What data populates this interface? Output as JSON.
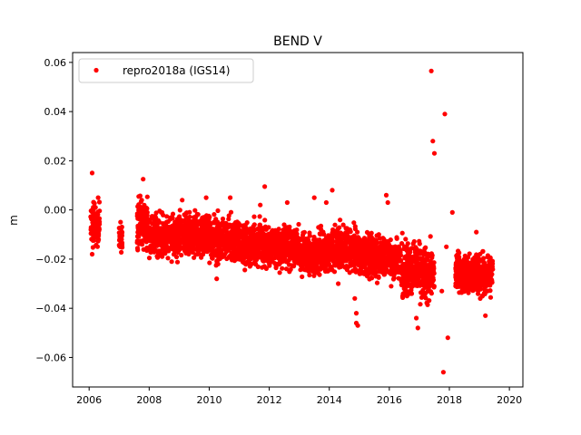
{
  "chart_data": {
    "type": "scatter",
    "title": "BEND V",
    "xlabel": "",
    "ylabel": "m",
    "xlim": [
      2005.45,
      2020.45
    ],
    "ylim": [
      -0.072,
      0.064
    ],
    "xticks": [
      2006,
      2008,
      2010,
      2012,
      2014,
      2016,
      2018,
      2020
    ],
    "yticks": [
      -0.06,
      -0.04,
      -0.02,
      0.0,
      0.02,
      0.04,
      0.06
    ],
    "xtick_labels": [
      "2006",
      "2008",
      "2010",
      "2012",
      "2014",
      "2016",
      "2018",
      "2020"
    ],
    "ytick_labels": [
      "−0.06",
      "−0.04",
      "−0.02",
      "0.00",
      "0.02",
      "0.04",
      "0.06"
    ],
    "grid": false,
    "legend_placement": "top-left",
    "series": [
      {
        "name": "repro2018a (IGS14)",
        "color": "#ff0000",
        "marker": "circle",
        "segments": [
          {
            "start": 2006.05,
            "end": 2006.35,
            "mean": -0.006,
            "spread": 0.004
          },
          {
            "start": 2007.0,
            "end": 2007.1,
            "mean": -0.012,
            "spread": 0.003
          },
          {
            "start": 2007.6,
            "end": 2007.95,
            "mean": -0.005,
            "spread": 0.005
          },
          {
            "start": 2008.0,
            "end": 2009.0,
            "mean": -0.011,
            "spread": 0.004
          },
          {
            "start": 2009.0,
            "end": 2010.0,
            "mean": -0.01,
            "spread": 0.004
          },
          {
            "start": 2010.0,
            "end": 2011.0,
            "mean": -0.012,
            "spread": 0.004
          },
          {
            "start": 2011.0,
            "end": 2012.0,
            "mean": -0.014,
            "spread": 0.004
          },
          {
            "start": 2012.0,
            "end": 2013.0,
            "mean": -0.015,
            "spread": 0.004
          },
          {
            "start": 2013.0,
            "end": 2014.0,
            "mean": -0.018,
            "spread": 0.004
          },
          {
            "start": 2014.0,
            "end": 2015.0,
            "mean": -0.016,
            "spread": 0.004
          },
          {
            "start": 2015.0,
            "end": 2016.0,
            "mean": -0.019,
            "spread": 0.004
          },
          {
            "start": 2016.0,
            "end": 2016.4,
            "mean": -0.02,
            "spread": 0.004
          },
          {
            "start": 2016.4,
            "end": 2017.0,
            "mean": -0.024,
            "spread": 0.005
          },
          {
            "start": 2017.0,
            "end": 2017.5,
            "mean": -0.026,
            "spread": 0.005
          },
          {
            "start": 2018.2,
            "end": 2018.8,
            "mean": -0.026,
            "spread": 0.004
          },
          {
            "start": 2018.8,
            "end": 2019.45,
            "mean": -0.026,
            "spread": 0.004
          }
        ],
        "outliers": [
          [
            2006.1,
            0.015
          ],
          [
            2006.1,
            -0.018
          ],
          [
            2006.3,
            0.005
          ],
          [
            2007.8,
            0.0125
          ],
          [
            2007.75,
            0.004
          ],
          [
            2009.1,
            0.004
          ],
          [
            2009.9,
            0.005
          ],
          [
            2010.7,
            0.005
          ],
          [
            2010.25,
            -0.028
          ],
          [
            2011.85,
            0.0095
          ],
          [
            2011.7,
            0.002
          ],
          [
            2012.6,
            0.003
          ],
          [
            2013.5,
            0.005
          ],
          [
            2014.1,
            0.008
          ],
          [
            2013.9,
            0.003
          ],
          [
            2014.3,
            -0.03
          ],
          [
            2014.85,
            -0.036
          ],
          [
            2014.9,
            -0.042
          ],
          [
            2014.9,
            -0.046
          ],
          [
            2014.95,
            -0.047
          ],
          [
            2015.9,
            0.006
          ],
          [
            2015.95,
            0.003
          ],
          [
            2016.9,
            -0.044
          ],
          [
            2016.95,
            -0.048
          ],
          [
            2017.4,
            0.0565
          ],
          [
            2017.45,
            0.028
          ],
          [
            2017.5,
            0.023
          ],
          [
            2017.85,
            0.039
          ],
          [
            2017.75,
            -0.033
          ],
          [
            2017.8,
            -0.066
          ],
          [
            2017.9,
            -0.015
          ],
          [
            2017.95,
            -0.052
          ],
          [
            2018.1,
            -0.001
          ],
          [
            2018.9,
            -0.009
          ],
          [
            2019.2,
            -0.043
          ]
        ]
      }
    ]
  }
}
